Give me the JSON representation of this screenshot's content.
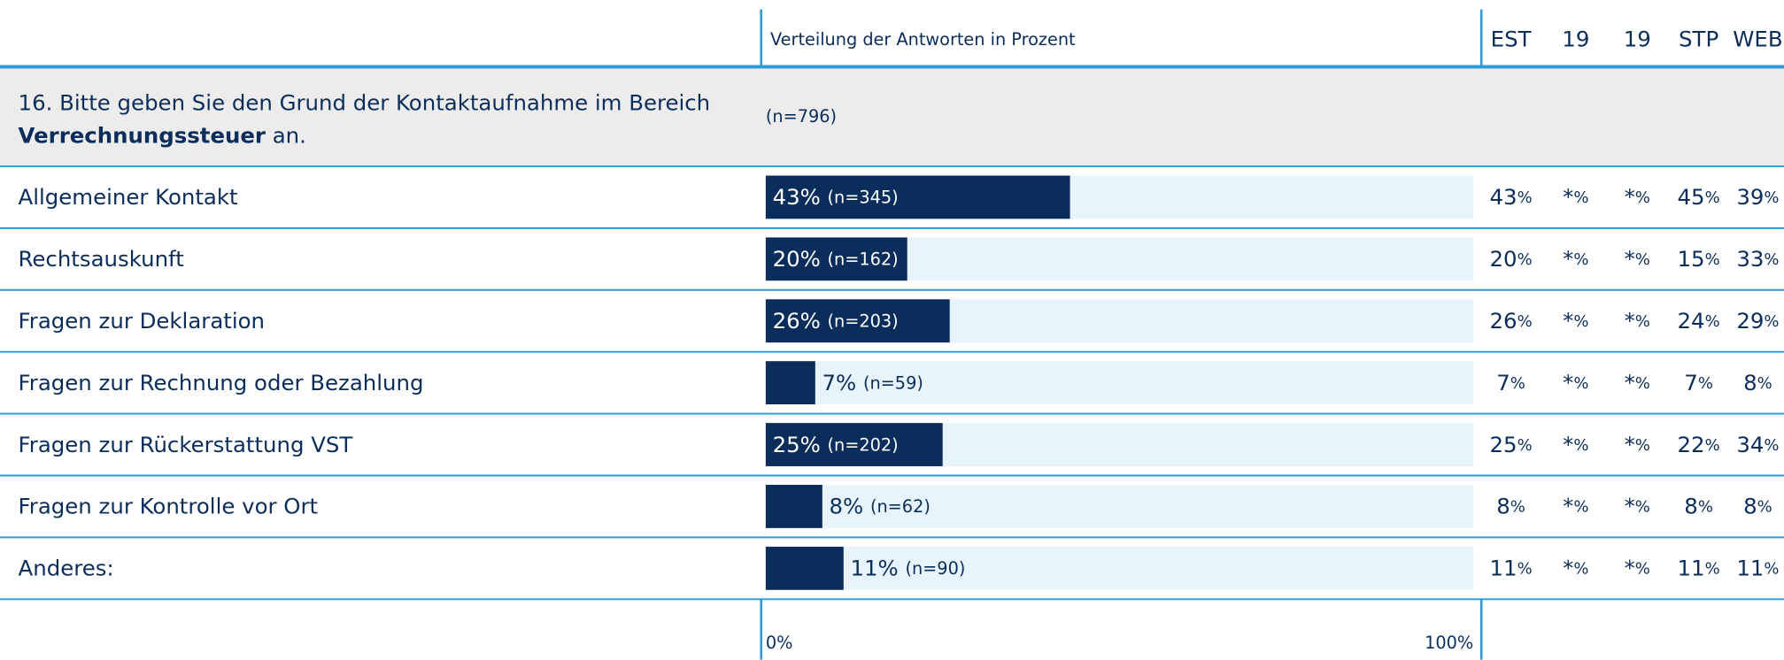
{
  "chart_data": {
    "type": "bar",
    "orientation": "horizontal",
    "header": "Verteilung der Antworten in Prozent",
    "question": {
      "line1": "16. Bitte geben Sie den Grund der Kontaktaufnahme im Bereich",
      "bold": "Verrechnungssteuer",
      "rest": "an."
    },
    "total_label": "(n=796)",
    "categories": [
      "Allgemeiner Kontakt",
      "Rechtsauskunft",
      "Fragen zur Deklaration",
      "Fragen zur Rechnung oder Bezahlung",
      "Fragen zur Rückerstattung VST",
      "Fragen zur Kontrolle vor Ort",
      "Anderes:"
    ],
    "values": [
      43,
      20,
      26,
      7,
      25,
      8,
      11
    ],
    "value_labels": [
      "43%",
      "20%",
      "26%",
      "7%",
      "25%",
      "8%",
      "11%"
    ],
    "n_labels": [
      "(n=345)",
      "(n=162)",
      "(n=203)",
      "(n=59)",
      "(n=202)",
      "(n=62)",
      "(n=90)"
    ],
    "color": "#0b2d5b",
    "xlim": [
      0,
      100
    ],
    "xticks": [
      {
        "value": 0,
        "label": "0%"
      },
      {
        "value": 100,
        "label": "100%"
      }
    ],
    "columns": [
      "EST",
      "19",
      "19",
      "STP",
      "WEB"
    ],
    "table": [
      [
        "43%",
        "*%",
        "*%",
        "45%",
        "39%"
      ],
      [
        "20%",
        "*%",
        "*%",
        "15%",
        "33%"
      ],
      [
        "26%",
        "*%",
        "*%",
        "24%",
        "29%"
      ],
      [
        "7%",
        "*%",
        "*%",
        "7%",
        "8%"
      ],
      [
        "25%",
        "*%",
        "*%",
        "22%",
        "34%"
      ],
      [
        "8%",
        "*%",
        "*%",
        "8%",
        "8%"
      ],
      [
        "11%",
        "*%",
        "*%",
        "11%",
        "11%"
      ]
    ]
  }
}
